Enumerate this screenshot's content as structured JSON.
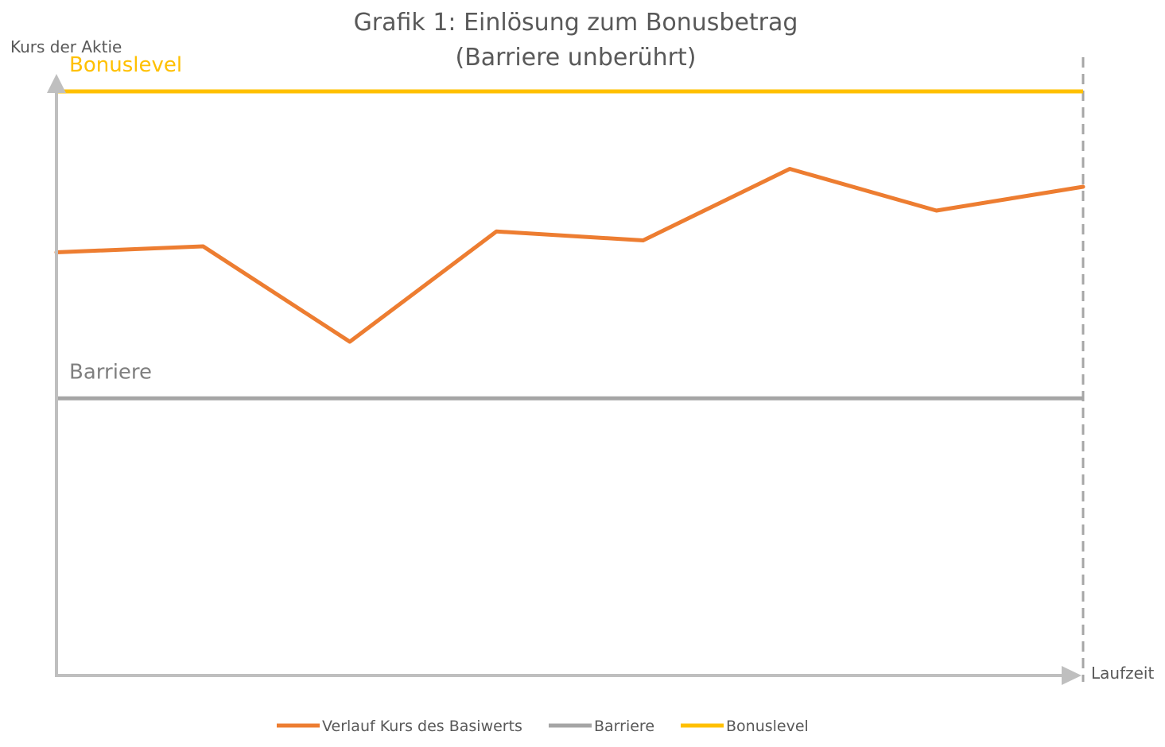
{
  "chart_data": {
    "type": "line",
    "title": "Grafik 1: Einlösung zum Bonusbetrag",
    "subtitle": "(Barriere unberührt)",
    "xlabel": "Laufzeit",
    "ylabel": "Kurs der Aktie",
    "x": [
      0,
      1,
      2,
      3,
      4,
      5,
      6,
      7
    ],
    "ylim": [
      0,
      100
    ],
    "xlim": [
      0,
      7
    ],
    "grid": false,
    "legend_position": "bottom",
    "series": [
      {
        "name": "Verlauf Kurs des Basiwerts",
        "values": [
          71,
          72,
          56,
          74.5,
          73,
          85,
          78,
          82
        ],
        "color": "#ED7D31"
      }
    ],
    "reference_lines": [
      {
        "name": "Barriere",
        "label": "Barriere",
        "value": 46.5,
        "color": "#A5A5A5"
      },
      {
        "name": "Bonuslevel",
        "label": "Bonuslevel",
        "value": 98,
        "color": "#FFC000"
      }
    ],
    "legend": [
      {
        "label": "Verlauf Kurs des Basiwerts",
        "color": "#ED7D31"
      },
      {
        "label": "Barriere",
        "color": "#A5A5A5"
      },
      {
        "label": "Bonuslevel",
        "color": "#FFC000"
      }
    ],
    "axis_color": "#BFBFBF",
    "dashed_line_color": "#A6A6A6"
  }
}
